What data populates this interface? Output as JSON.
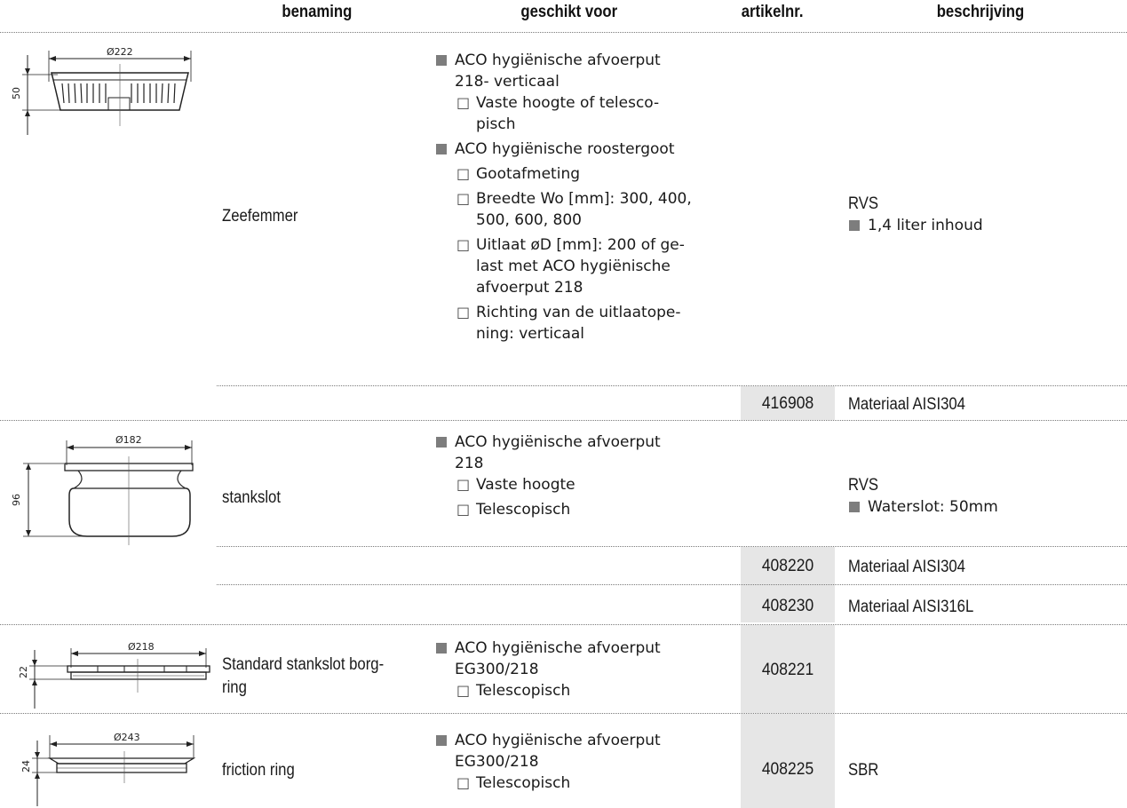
{
  "headers": {
    "name": "benaming",
    "suitable": "geschikt voor",
    "article": "artikelnr.",
    "description": "beschrijving"
  },
  "rows": [
    {
      "drawing": {
        "diameter": "Ø222",
        "height": "50"
      },
      "name": "Zeefemmer",
      "suitable": [
        {
          "level": 1,
          "text": "ACO hygiënische afvoerput"
        },
        {
          "level": 1,
          "text": "218- verticaal",
          "cont": true
        },
        {
          "level": 2,
          "text": "Vaste hoogte of telesco-"
        },
        {
          "level": 2,
          "text": "pisch",
          "cont": true
        },
        {
          "level": 1,
          "text": "ACO hygiënische roostergoot"
        },
        {
          "level": 2,
          "text": "Gootafmeting"
        },
        {
          "level": 2,
          "text": "Breedte Wo [mm]: 300, 400,"
        },
        {
          "level": 2,
          "text": "500, 600, 800",
          "cont": true
        },
        {
          "level": 2,
          "text": "Uitlaat øD [mm]: 200 of ge-"
        },
        {
          "level": 2,
          "text": "last met ACO hygiënische",
          "cont": true
        },
        {
          "level": 2,
          "text": "afvoerput 218",
          "cont": true
        },
        {
          "level": 2,
          "text": "Richting van de uitlaatope-"
        },
        {
          "level": 2,
          "text": "ning: verticaal",
          "cont": true
        }
      ],
      "desc_title": "RVS",
      "desc_bullet": "1,4 liter inhoud",
      "variants": [
        {
          "article": "416908",
          "material": "Materiaal AISI304"
        }
      ]
    },
    {
      "drawing": {
        "diameter": "Ø182",
        "height": "96"
      },
      "name": "stankslot",
      "suitable": [
        {
          "level": 1,
          "text": "ACO hygiënische afvoerput"
        },
        {
          "level": 1,
          "text": "218",
          "cont": true
        },
        {
          "level": 2,
          "text": "Vaste hoogte"
        },
        {
          "level": 2,
          "text": "Telescopisch"
        }
      ],
      "desc_title": "RVS",
      "desc_bullet": "Waterslot: 50mm",
      "variants": [
        {
          "article": "408220",
          "material": "Materiaal AISI304"
        },
        {
          "article": "408230",
          "material": "Materiaal AISI316L"
        }
      ]
    },
    {
      "drawing": {
        "diameter": "Ø218",
        "height": "22"
      },
      "name": [
        "Standard stankslot borg-",
        "ring"
      ],
      "suitable": [
        {
          "level": 1,
          "text": "ACO hygiënische afvoerput"
        },
        {
          "level": 1,
          "text": "EG300/218",
          "cont": true
        },
        {
          "level": 2,
          "text": "Telescopisch"
        }
      ],
      "article": "408221",
      "desc": ""
    },
    {
      "drawing": {
        "diameter": "Ø243",
        "height": "24"
      },
      "name": "friction ring",
      "suitable": [
        {
          "level": 1,
          "text": "ACO hygiënische afvoerput"
        },
        {
          "level": 1,
          "text": "EG300/218",
          "cont": true
        },
        {
          "level": 2,
          "text": "Telescopisch"
        }
      ],
      "article": "408225",
      "desc": "SBR"
    }
  ],
  "icons": {
    "bullet": "filled-square",
    "subbullet": "open-square-□"
  }
}
